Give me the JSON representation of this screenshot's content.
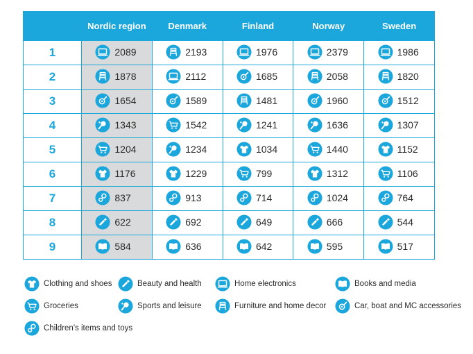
{
  "chart_data": {
    "type": "table",
    "columns": [
      "Nordic region",
      "Denmark",
      "Finland",
      "Norway",
      "Sweden"
    ],
    "ranks": [
      "1",
      "2",
      "3",
      "4",
      "5",
      "6",
      "7",
      "8",
      "9"
    ],
    "rows": [
      [
        {
          "icon": "home-electronics",
          "value": "2089"
        },
        {
          "icon": "furniture",
          "value": "2193"
        },
        {
          "icon": "home-electronics",
          "value": "1976"
        },
        {
          "icon": "home-electronics",
          "value": "2379"
        },
        {
          "icon": "home-electronics",
          "value": "1986"
        }
      ],
      [
        {
          "icon": "furniture",
          "value": "1878"
        },
        {
          "icon": "home-electronics",
          "value": "2112"
        },
        {
          "icon": "car-accessories",
          "value": "1685"
        },
        {
          "icon": "furniture",
          "value": "2058"
        },
        {
          "icon": "furniture",
          "value": "1820"
        }
      ],
      [
        {
          "icon": "car-accessories",
          "value": "1654"
        },
        {
          "icon": "car-accessories",
          "value": "1589"
        },
        {
          "icon": "furniture",
          "value": "1481"
        },
        {
          "icon": "car-accessories",
          "value": "1960"
        },
        {
          "icon": "car-accessories",
          "value": "1512"
        }
      ],
      [
        {
          "icon": "sports",
          "value": "1343"
        },
        {
          "icon": "groceries",
          "value": "1542"
        },
        {
          "icon": "sports",
          "value": "1241"
        },
        {
          "icon": "sports",
          "value": "1636"
        },
        {
          "icon": "sports",
          "value": "1307"
        }
      ],
      [
        {
          "icon": "groceries",
          "value": "1204"
        },
        {
          "icon": "sports",
          "value": "1234"
        },
        {
          "icon": "clothing",
          "value": "1034"
        },
        {
          "icon": "groceries",
          "value": "1440"
        },
        {
          "icon": "clothing",
          "value": "1152"
        }
      ],
      [
        {
          "icon": "clothing",
          "value": "1176"
        },
        {
          "icon": "clothing",
          "value": "1229"
        },
        {
          "icon": "groceries",
          "value": "799"
        },
        {
          "icon": "clothing",
          "value": "1312"
        },
        {
          "icon": "groceries",
          "value": "1106"
        }
      ],
      [
        {
          "icon": "children",
          "value": "837"
        },
        {
          "icon": "children",
          "value": "913"
        },
        {
          "icon": "children",
          "value": "714"
        },
        {
          "icon": "children",
          "value": "1024"
        },
        {
          "icon": "children",
          "value": "764"
        }
      ],
      [
        {
          "icon": "beauty",
          "value": "622"
        },
        {
          "icon": "beauty",
          "value": "692"
        },
        {
          "icon": "beauty",
          "value": "649"
        },
        {
          "icon": "beauty",
          "value": "666"
        },
        {
          "icon": "beauty",
          "value": "544"
        }
      ],
      [
        {
          "icon": "books",
          "value": "584"
        },
        {
          "icon": "books",
          "value": "636"
        },
        {
          "icon": "books",
          "value": "642"
        },
        {
          "icon": "books",
          "value": "595"
        },
        {
          "icon": "books",
          "value": "517"
        }
      ]
    ]
  },
  "legend": [
    {
      "icon": "clothing",
      "label": "Clothing and shoes"
    },
    {
      "icon": "beauty",
      "label": "Beauty and health"
    },
    {
      "icon": "home-electronics",
      "label": "Home electronics"
    },
    {
      "icon": "books",
      "label": "Books and media"
    },
    {
      "icon": "groceries",
      "label": "Groceries"
    },
    {
      "icon": "sports",
      "label": "Sports and leisure"
    },
    {
      "icon": "furniture",
      "label": "Furniture and home decor"
    },
    {
      "icon": "car-accessories",
      "label": "Car, boat and MC accessories"
    },
    {
      "icon": "children",
      "label": "Children's items and toys"
    }
  ],
  "colors": {
    "accent": "#1ba6dc",
    "nordic_bg": "#d9dadb",
    "text": "#2a2a2a",
    "header_text": "#ffffff"
  }
}
